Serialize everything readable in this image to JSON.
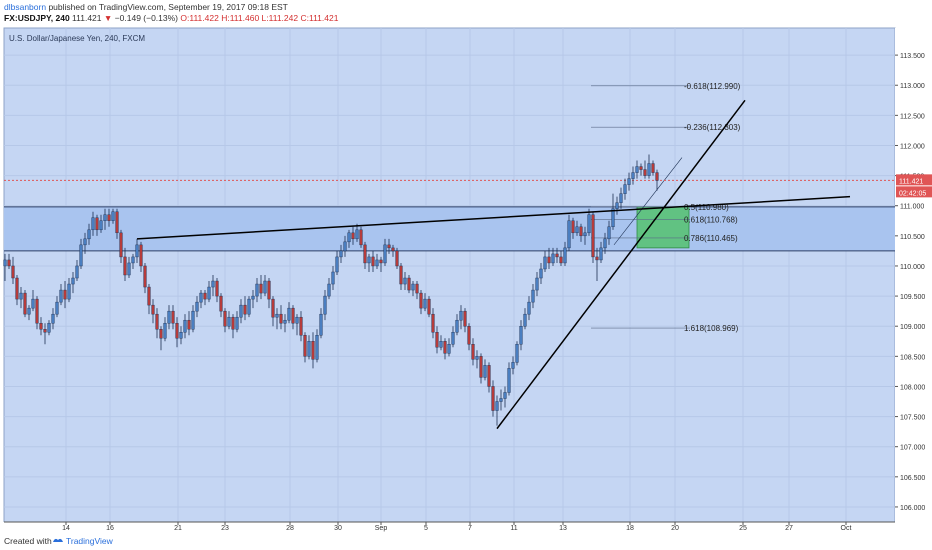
{
  "header": {
    "author": "dlbsanborn",
    "published": "published on TradingView.com, September 19, 2017 09:18 EST",
    "symbol": "FX:USDJPY, 240",
    "last": "111.421",
    "change_arrow": "▼",
    "change": "−0.149 (−0.13%)",
    "open": "O:111.422",
    "high": "H:111.460",
    "low": "L:111.242",
    "close": "C:111.421"
  },
  "footer": {
    "created_with": "Created with",
    "brand": "TradingView",
    "brand_icon": "tradingview-logo-icon"
  },
  "colors": {
    "background": "#c5d6f3",
    "zone": "#a9c4ef",
    "up_candle": "#4a7ec0",
    "down_candle": "#b53b3b",
    "wick": "#1c2f52",
    "price_line": "#e05555",
    "fib_box": "#55c26e",
    "trendline": "#000000"
  },
  "chart_data": {
    "type": "candlestick",
    "title": "U.S. Dollar/Japanese Yen, 240, FXCM",
    "x_tick_labels": [
      "14",
      "16",
      "21",
      "23",
      "28",
      "30",
      "Sep",
      "5",
      "7",
      "11",
      "13",
      "18",
      "20",
      "25",
      "27",
      "Oct"
    ],
    "y_tick_labels": [
      "113.500",
      "113.000",
      "112.500",
      "112.000",
      "111.500",
      "111.000",
      "110.500",
      "110.000",
      "109.500",
      "109.000",
      "108.500",
      "108.000",
      "107.500",
      "107.000",
      "106.500",
      "106.000"
    ],
    "ylim": [
      105.75,
      113.95
    ],
    "last_price_label": "111.421",
    "countdown_label": "02:42:05",
    "grid": true,
    "resistance_zone": [
      110.25,
      110.98
    ],
    "fib_levels": [
      {
        "label": "-0.618(112.990)",
        "value": 112.99
      },
      {
        "label": "-0.236(112.303)",
        "value": 112.303
      },
      {
        "label": "0.5(110.980)",
        "value": 110.98
      },
      {
        "label": "0.618(110.768)",
        "value": 110.768
      },
      {
        "label": "0.786(110.465)",
        "value": 110.465
      },
      {
        "label": "1.618(108.969)",
        "value": 108.969
      }
    ],
    "fib_box": {
      "from": 110.98,
      "to": 110.3
    },
    "trendlines": [
      {
        "x1": 137,
        "y1": 110.45,
        "x2": 850,
        "y2": 111.15
      },
      {
        "x1": 497,
        "y1": 107.3,
        "x2": 745,
        "y2": 112.75
      }
    ],
    "candles": [
      [
        5,
        110.0,
        110.2,
        109.75,
        110.1
      ],
      [
        9,
        110.1,
        110.2,
        109.95,
        110.0
      ],
      [
        13,
        110.0,
        110.15,
        109.7,
        109.8
      ],
      [
        17,
        109.8,
        109.85,
        109.35,
        109.45
      ],
      [
        21,
        109.45,
        109.65,
        109.3,
        109.55
      ],
      [
        25,
        109.55,
        109.6,
        109.15,
        109.2
      ],
      [
        29,
        109.2,
        109.35,
        109.1,
        109.3
      ],
      [
        33,
        109.3,
        109.6,
        109.25,
        109.45
      ],
      [
        37,
        109.45,
        109.5,
        108.95,
        109.05
      ],
      [
        41,
        109.05,
        109.15,
        108.85,
        108.95
      ],
      [
        45,
        108.95,
        109.05,
        108.7,
        108.9
      ],
      [
        49,
        108.9,
        109.1,
        108.85,
        109.05
      ],
      [
        53,
        109.05,
        109.3,
        108.95,
        109.2
      ],
      [
        57,
        109.2,
        109.5,
        109.15,
        109.4
      ],
      [
        61,
        109.4,
        109.7,
        109.35,
        109.6
      ],
      [
        65,
        109.6,
        109.75,
        109.3,
        109.45
      ],
      [
        69,
        109.45,
        109.8,
        109.4,
        109.7
      ],
      [
        73,
        109.7,
        109.9,
        109.55,
        109.8
      ],
      [
        77,
        109.8,
        110.1,
        109.75,
        110.0
      ],
      [
        81,
        110.0,
        110.45,
        109.95,
        110.35
      ],
      [
        85,
        110.35,
        110.55,
        110.2,
        110.45
      ],
      [
        89,
        110.45,
        110.7,
        110.35,
        110.6
      ],
      [
        93,
        110.6,
        110.9,
        110.5,
        110.8
      ],
      [
        97,
        110.8,
        110.85,
        110.5,
        110.6
      ],
      [
        101,
        110.6,
        110.85,
        110.55,
        110.75
      ],
      [
        105,
        110.75,
        110.95,
        110.6,
        110.85
      ],
      [
        109,
        110.85,
        110.95,
        110.65,
        110.75
      ],
      [
        113,
        110.75,
        110.95,
        110.7,
        110.9
      ],
      [
        117,
        110.9,
        110.95,
        110.45,
        110.55
      ],
      [
        121,
        110.55,
        110.6,
        110.05,
        110.15
      ],
      [
        125,
        110.15,
        110.3,
        109.75,
        109.85
      ],
      [
        129,
        109.85,
        110.15,
        109.8,
        110.05
      ],
      [
        133,
        110.05,
        110.2,
        109.95,
        110.15
      ],
      [
        137,
        110.15,
        110.45,
        110.05,
        110.35
      ],
      [
        141,
        110.35,
        110.4,
        109.9,
        110.0
      ],
      [
        145,
        110.0,
        110.05,
        109.55,
        109.65
      ],
      [
        149,
        109.65,
        109.7,
        109.2,
        109.35
      ],
      [
        153,
        109.35,
        109.45,
        109.05,
        109.2
      ],
      [
        157,
        109.2,
        109.3,
        108.8,
        108.95
      ],
      [
        161,
        108.95,
        109.0,
        108.6,
        108.8
      ],
      [
        165,
        108.8,
        109.15,
        108.75,
        109.05
      ],
      [
        169,
        109.05,
        109.35,
        108.95,
        109.25
      ],
      [
        173,
        109.25,
        109.35,
        108.95,
        109.05
      ],
      [
        177,
        109.05,
        109.15,
        108.65,
        108.8
      ],
      [
        181,
        108.8,
        109.0,
        108.7,
        108.9
      ],
      [
        185,
        108.9,
        109.2,
        108.8,
        109.1
      ],
      [
        189,
        109.1,
        109.25,
        108.85,
        108.95
      ],
      [
        193,
        108.95,
        109.35,
        108.9,
        109.25
      ],
      [
        197,
        109.25,
        109.5,
        109.15,
        109.4
      ],
      [
        201,
        109.4,
        109.6,
        109.3,
        109.55
      ],
      [
        205,
        109.55,
        109.6,
        109.35,
        109.45
      ],
      [
        209,
        109.45,
        109.75,
        109.4,
        109.65
      ],
      [
        213,
        109.65,
        109.85,
        109.5,
        109.75
      ],
      [
        217,
        109.75,
        109.8,
        109.4,
        109.5
      ],
      [
        221,
        109.5,
        109.55,
        109.15,
        109.25
      ],
      [
        225,
        109.25,
        109.3,
        108.9,
        109.0
      ],
      [
        229,
        109.0,
        109.25,
        108.95,
        109.15
      ],
      [
        233,
        109.15,
        109.2,
        108.8,
        108.95
      ],
      [
        237,
        108.95,
        109.25,
        108.9,
        109.15
      ],
      [
        241,
        109.15,
        109.45,
        109.05,
        109.35
      ],
      [
        245,
        109.35,
        109.5,
        109.1,
        109.2
      ],
      [
        249,
        109.2,
        109.5,
        109.15,
        109.45
      ],
      [
        253,
        109.45,
        109.6,
        109.3,
        109.5
      ],
      [
        257,
        109.5,
        109.8,
        109.4,
        109.7
      ],
      [
        261,
        109.7,
        109.85,
        109.45,
        109.55
      ],
      [
        265,
        109.55,
        109.85,
        109.5,
        109.75
      ],
      [
        269,
        109.75,
        109.8,
        109.3,
        109.45
      ],
      [
        273,
        109.45,
        109.5,
        109.0,
        109.15
      ],
      [
        277,
        109.15,
        109.3,
        108.95,
        109.2
      ],
      [
        281,
        109.2,
        109.35,
        108.95,
        109.05
      ],
      [
        285,
        109.05,
        109.2,
        108.9,
        109.1
      ],
      [
        289,
        109.1,
        109.4,
        109.05,
        109.3
      ],
      [
        293,
        109.3,
        109.35,
        108.95,
        109.05
      ],
      [
        297,
        109.05,
        109.2,
        108.85,
        109.15
      ],
      [
        301,
        109.15,
        109.25,
        108.75,
        108.85
      ],
      [
        305,
        108.85,
        108.9,
        108.4,
        108.5
      ],
      [
        309,
        108.5,
        108.85,
        108.45,
        108.75
      ],
      [
        313,
        108.75,
        108.9,
        108.3,
        108.45
      ],
      [
        317,
        108.45,
        108.95,
        108.4,
        108.85
      ],
      [
        321,
        108.85,
        109.3,
        108.8,
        109.2
      ],
      [
        325,
        109.2,
        109.6,
        109.1,
        109.5
      ],
      [
        329,
        109.5,
        109.8,
        109.45,
        109.7
      ],
      [
        333,
        109.7,
        110.0,
        109.6,
        109.9
      ],
      [
        337,
        109.9,
        110.25,
        109.85,
        110.15
      ],
      [
        341,
        110.15,
        110.35,
        110.05,
        110.25
      ],
      [
        345,
        110.25,
        110.5,
        110.15,
        110.4
      ],
      [
        349,
        110.4,
        110.6,
        110.3,
        110.55
      ],
      [
        353,
        110.55,
        110.65,
        110.35,
        110.45
      ],
      [
        357,
        110.45,
        110.7,
        110.4,
        110.6
      ],
      [
        361,
        110.6,
        110.65,
        110.3,
        110.35
      ],
      [
        365,
        110.35,
        110.4,
        109.95,
        110.05
      ],
      [
        369,
        110.05,
        110.2,
        109.9,
        110.15
      ],
      [
        373,
        110.15,
        110.25,
        109.9,
        110.0
      ],
      [
        377,
        110.0,
        110.2,
        109.95,
        110.1
      ],
      [
        381,
        110.1,
        110.15,
        109.9,
        110.05
      ],
      [
        385,
        110.05,
        110.45,
        110.0,
        110.35
      ],
      [
        389,
        110.35,
        110.45,
        110.2,
        110.3
      ],
      [
        393,
        110.3,
        110.35,
        110.15,
        110.25
      ],
      [
        397,
        110.25,
        110.3,
        109.95,
        110.0
      ],
      [
        401,
        110.0,
        110.05,
        109.6,
        109.7
      ],
      [
        405,
        109.7,
        109.9,
        109.6,
        109.8
      ],
      [
        409,
        109.8,
        109.85,
        109.55,
        109.6
      ],
      [
        413,
        109.6,
        109.75,
        109.5,
        109.7
      ],
      [
        417,
        109.7,
        109.75,
        109.45,
        109.55
      ],
      [
        421,
        109.55,
        109.6,
        109.2,
        109.3
      ],
      [
        425,
        109.3,
        109.55,
        109.25,
        109.45
      ],
      [
        429,
        109.45,
        109.5,
        109.15,
        109.2
      ],
      [
        433,
        109.2,
        109.3,
        108.8,
        108.9
      ],
      [
        437,
        108.9,
        109.0,
        108.55,
        108.65
      ],
      [
        441,
        108.65,
        108.85,
        108.6,
        108.75
      ],
      [
        445,
        108.75,
        108.8,
        108.45,
        108.55
      ],
      [
        449,
        108.55,
        108.8,
        108.5,
        108.7
      ],
      [
        453,
        108.7,
        109.0,
        108.65,
        108.9
      ],
      [
        457,
        108.9,
        109.2,
        108.85,
        109.1
      ],
      [
        461,
        109.1,
        109.35,
        108.95,
        109.25
      ],
      [
        465,
        109.25,
        109.3,
        108.9,
        109.0
      ],
      [
        469,
        109.0,
        109.05,
        108.6,
        108.7
      ],
      [
        473,
        108.7,
        108.8,
        108.35,
        108.45
      ],
      [
        477,
        108.45,
        108.6,
        108.3,
        108.5
      ],
      [
        481,
        108.5,
        108.55,
        108.05,
        108.15
      ],
      [
        485,
        108.15,
        108.45,
        108.1,
        108.35
      ],
      [
        489,
        108.35,
        108.4,
        107.9,
        108.0
      ],
      [
        493,
        108.0,
        108.1,
        107.5,
        107.6
      ],
      [
        497,
        107.6,
        107.85,
        107.35,
        107.75
      ],
      [
        501,
        107.75,
        107.95,
        107.6,
        107.8
      ],
      [
        505,
        107.8,
        108.0,
        107.65,
        107.9
      ],
      [
        509,
        107.9,
        108.4,
        107.85,
        108.3
      ],
      [
        513,
        108.3,
        108.5,
        108.2,
        108.4
      ],
      [
        517,
        108.4,
        108.75,
        108.35,
        108.7
      ],
      [
        521,
        108.7,
        109.1,
        108.6,
        109.0
      ],
      [
        525,
        109.0,
        109.3,
        108.95,
        109.2
      ],
      [
        529,
        109.2,
        109.5,
        109.1,
        109.4
      ],
      [
        533,
        109.4,
        109.7,
        109.3,
        109.6
      ],
      [
        537,
        109.6,
        109.9,
        109.5,
        109.8
      ],
      [
        541,
        109.8,
        110.05,
        109.7,
        109.95
      ],
      [
        545,
        109.95,
        110.25,
        109.9,
        110.15
      ],
      [
        549,
        110.15,
        110.3,
        109.95,
        110.05
      ],
      [
        553,
        110.05,
        110.3,
        110.0,
        110.2
      ],
      [
        557,
        110.2,
        110.3,
        110.05,
        110.15
      ],
      [
        561,
        110.15,
        110.25,
        110.0,
        110.05
      ],
      [
        565,
        110.05,
        110.4,
        110.0,
        110.3
      ],
      [
        569,
        110.3,
        110.85,
        110.25,
        110.75
      ],
      [
        573,
        110.75,
        110.8,
        110.45,
        110.55
      ],
      [
        577,
        110.55,
        110.75,
        110.5,
        110.65
      ],
      [
        581,
        110.65,
        110.7,
        110.4,
        110.5
      ],
      [
        585,
        110.5,
        110.65,
        110.35,
        110.55
      ],
      [
        589,
        110.55,
        110.95,
        110.5,
        110.85
      ],
      [
        593,
        110.85,
        110.9,
        110.05,
        110.15
      ],
      [
        597,
        110.15,
        110.3,
        109.75,
        110.1
      ],
      [
        601,
        110.1,
        110.4,
        110.05,
        110.3
      ],
      [
        605,
        110.3,
        110.55,
        110.2,
        110.45
      ],
      [
        609,
        110.45,
        110.75,
        110.35,
        110.65
      ],
      [
        613,
        110.65,
        111.2,
        110.6,
        110.95
      ],
      [
        617,
        110.95,
        111.15,
        110.85,
        111.05
      ],
      [
        621,
        111.05,
        111.3,
        110.95,
        111.2
      ],
      [
        625,
        111.2,
        111.45,
        111.1,
        111.35
      ],
      [
        629,
        111.35,
        111.55,
        111.25,
        111.45
      ],
      [
        633,
        111.45,
        111.65,
        111.35,
        111.55
      ],
      [
        637,
        111.55,
        111.75,
        111.45,
        111.65
      ],
      [
        641,
        111.65,
        111.7,
        111.5,
        111.6
      ],
      [
        645,
        111.6,
        111.75,
        111.45,
        111.5
      ],
      [
        649,
        111.5,
        111.85,
        111.45,
        111.7
      ],
      [
        653,
        111.7,
        111.75,
        111.5,
        111.55
      ],
      [
        657,
        111.55,
        111.6,
        111.25,
        111.42
      ]
    ]
  }
}
